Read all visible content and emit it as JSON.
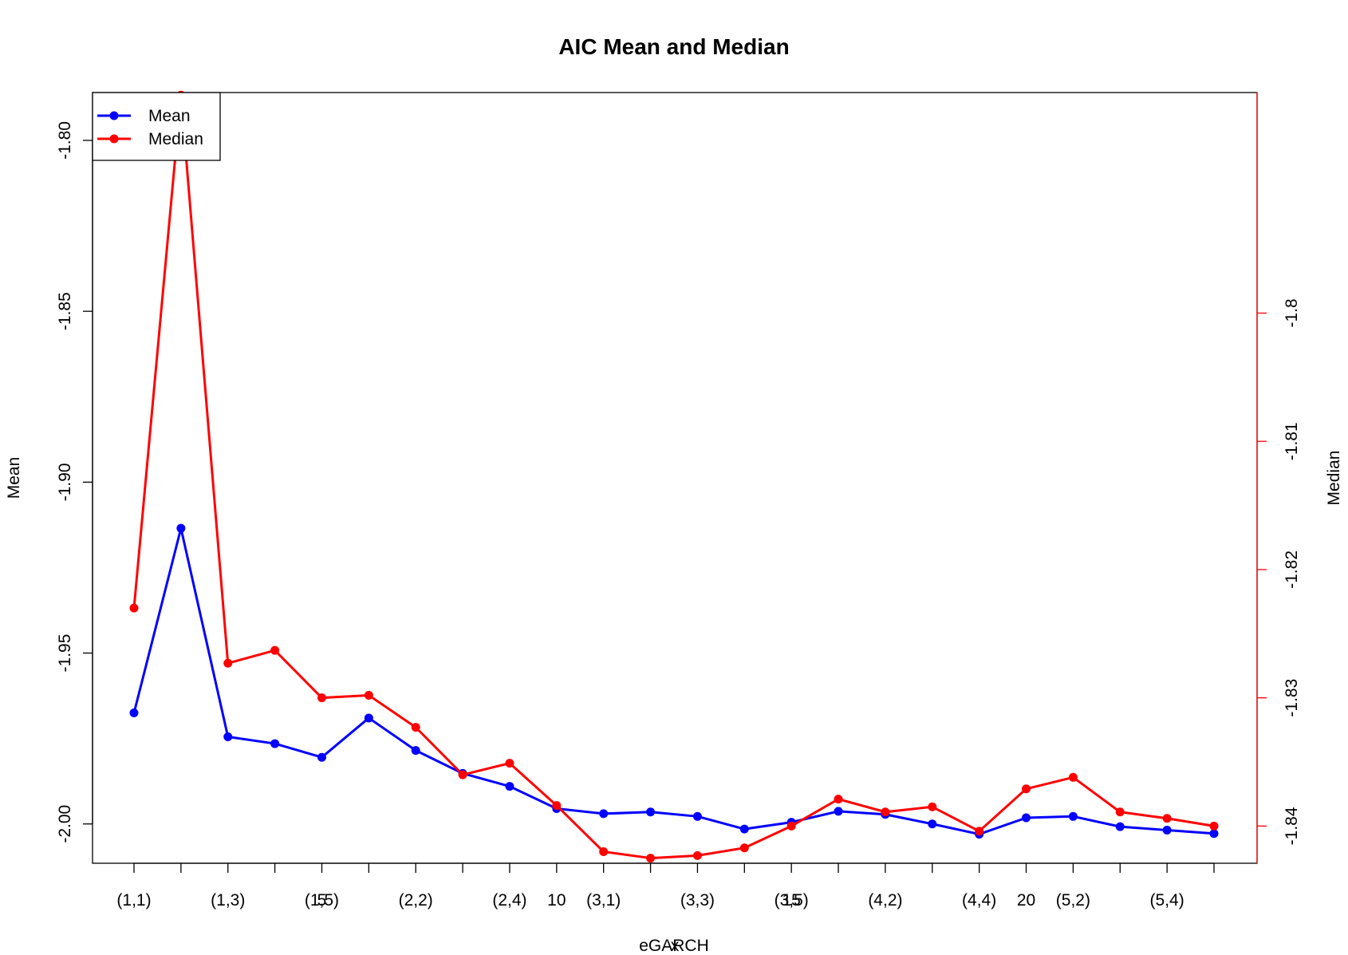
{
  "chart_data": {
    "type": "line",
    "title": "AIC Mean and Median",
    "xlabel": "eGARCH",
    "xlabel_overlap": "x",
    "ylabel_left": "Mean",
    "ylabel_right": "Median",
    "x_tick_labels": [
      "(1,1)",
      "(1,3)",
      "(1,5)",
      "(2,2)",
      "(2,4)",
      "(3,1)",
      "(3,3)",
      "(3,5)",
      "(4,2)",
      "(4,4)",
      "(5,2)",
      "(5,4)"
    ],
    "x_tick_label_positions": [
      1,
      3,
      5,
      7,
      9,
      11,
      13,
      15,
      17,
      19,
      21,
      23
    ],
    "x_numeric_tick_labels": [
      "5",
      "10",
      "15",
      "20"
    ],
    "x_numeric_tick_positions": [
      5,
      10,
      15,
      20
    ],
    "x_range": [
      1,
      24
    ],
    "left_axis": {
      "ylim": [
        -2.0115,
        -1.786
      ],
      "ticks": [
        -2.0,
        -1.95,
        -1.9,
        -1.85,
        -1.8
      ],
      "tick_labels": [
        "-2.00",
        "-1.95",
        "-1.90",
        "-1.85",
        "-1.80"
      ],
      "color": "#000000"
    },
    "right_axis": {
      "ylim": [
        -1.8429,
        -1.7828
      ],
      "ticks": [
        -1.84,
        -1.83,
        -1.82,
        -1.81,
        -1.8
      ],
      "tick_labels": [
        "-1.84",
        "-1.83",
        "-1.82",
        "-1.81",
        "-1.8"
      ],
      "color": "#ff0000"
    },
    "series": [
      {
        "name": "Mean",
        "axis": "left",
        "color": "#0000ff",
        "values": [
          -1.9675,
          -1.9135,
          -1.9745,
          -1.9765,
          -1.9805,
          -1.969,
          -1.9785,
          -1.9852,
          -1.989,
          -1.9955,
          -1.997,
          -1.9965,
          -1.9978,
          -2.0015,
          -1.9995,
          -1.9963,
          -1.9972,
          -2.0,
          -2.003,
          -1.9982,
          -1.9978,
          -2.0008,
          -2.0018,
          -2.0028
        ]
      },
      {
        "name": "Median",
        "axis": "right",
        "color": "#ff0000",
        "values": [
          -1.823,
          -1.783,
          -1.8273,
          -1.8263,
          -1.83,
          -1.8298,
          -1.8323,
          -1.836,
          -1.8351,
          -1.8384,
          -1.842,
          -1.8425,
          -1.8423,
          -1.8417,
          -1.84,
          -1.8379,
          -1.8389,
          -1.8385,
          -1.8404,
          -1.8371,
          -1.8362,
          -1.8389,
          -1.8394,
          -1.84
        ]
      }
    ],
    "legend": {
      "placement": "top-left",
      "entries": [
        {
          "label": "Mean",
          "color": "#0000ff"
        },
        {
          "label": "Median",
          "color": "#ff0000"
        }
      ]
    },
    "grid": false
  }
}
